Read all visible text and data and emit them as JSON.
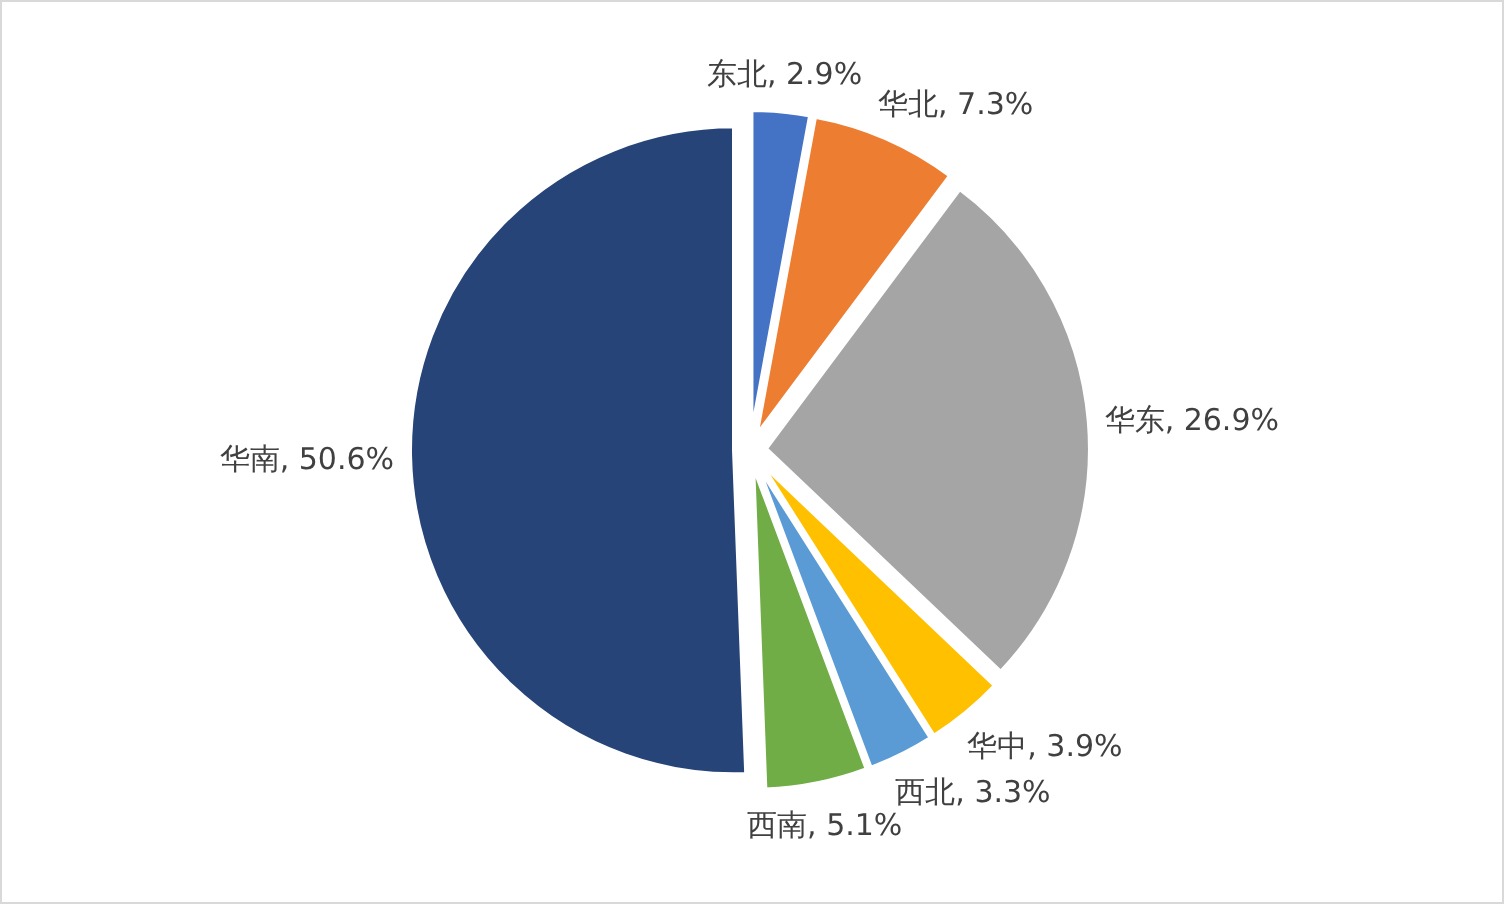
{
  "chart_data": {
    "type": "pie",
    "categories": [
      "东北",
      "华北",
      "华东",
      "华中",
      "西北",
      "西南",
      "华南"
    ],
    "values": [
      2.9,
      7.3,
      26.9,
      3.9,
      3.3,
      5.1,
      50.6
    ],
    "colors": [
      "#4472c4",
      "#ed7d31",
      "#a5a5a5",
      "#ffc000",
      "#5b9bd5",
      "#70ad47",
      "#264478"
    ],
    "value_labels": [
      ", 2.9%",
      ", 7.3%",
      ", 26.9%",
      ", 3.9%",
      ", 3.3%",
      ", 5.1%",
      ", 50.6%"
    ]
  }
}
